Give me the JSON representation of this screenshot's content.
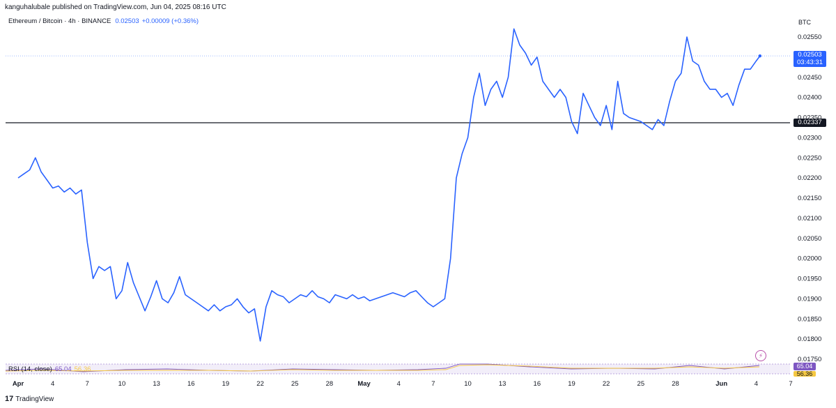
{
  "header": {
    "publisher": "kanguhalubale published on TradingView.com, Jun 04, 2025 08:16 UTC",
    "symbol": "Ethereum / Bitcoin · 4h · BINANCE",
    "last_value": "0.02503",
    "change": "+0.00009 (+0.36%)",
    "currency": "BTC"
  },
  "price_tag": {
    "price": "0.02503",
    "countdown": "03:43:31"
  },
  "horizontal_line": {
    "label": "0.02337"
  },
  "rsi": {
    "label": "RSI (14, close)",
    "value1": "65.04",
    "value2": "56.36"
  },
  "brand": {
    "logo": "17",
    "name": "TradingView"
  },
  "icons": {
    "bolt": "lightning-icon"
  },
  "colors": {
    "line": "#2962ff",
    "hline": "#131722",
    "rsi": "#7e57c2",
    "rsi_ma": "#f5c842"
  },
  "chart_data": {
    "type": "line",
    "title": "Ethereum / Bitcoin · 4h · BINANCE",
    "ylim": [
      0.0172,
      0.0259
    ],
    "xlim": [
      "2025-04-01",
      "2025-06-07"
    ],
    "y_ticks": [
      "0.02550",
      "0.02500",
      "0.02450",
      "0.02400",
      "0.02350",
      "0.02300",
      "0.02250",
      "0.02200",
      "0.02150",
      "0.02100",
      "0.02050",
      "0.02000",
      "0.01950",
      "0.01900",
      "0.01850",
      "0.01800",
      "0.01750"
    ],
    "x_ticks": [
      {
        "label": "Apr",
        "date": "2025-04-01",
        "bold": true
      },
      {
        "label": "4",
        "date": "2025-04-04"
      },
      {
        "label": "7",
        "date": "2025-04-07"
      },
      {
        "label": "10",
        "date": "2025-04-10"
      },
      {
        "label": "13",
        "date": "2025-04-13"
      },
      {
        "label": "16",
        "date": "2025-04-16"
      },
      {
        "label": "19",
        "date": "2025-04-19"
      },
      {
        "label": "22",
        "date": "2025-04-22"
      },
      {
        "label": "25",
        "date": "2025-04-25"
      },
      {
        "label": "28",
        "date": "2025-04-28"
      },
      {
        "label": "May",
        "date": "2025-05-01",
        "bold": true
      },
      {
        "label": "4",
        "date": "2025-05-04"
      },
      {
        "label": "7",
        "date": "2025-05-07"
      },
      {
        "label": "10",
        "date": "2025-05-10"
      },
      {
        "label": "13",
        "date": "2025-05-13"
      },
      {
        "label": "16",
        "date": "2025-05-16"
      },
      {
        "label": "19",
        "date": "2025-05-19"
      },
      {
        "label": "22",
        "date": "2025-05-22"
      },
      {
        "label": "25",
        "date": "2025-05-25"
      },
      {
        "label": "28",
        "date": "2025-05-28"
      },
      {
        "label": "Jun",
        "date": "2025-06-01",
        "bold": true
      },
      {
        "label": "4",
        "date": "2025-06-04"
      },
      {
        "label": "7",
        "date": "2025-06-07"
      }
    ],
    "horizontal_level": 0.02337,
    "last_price": 0.02503,
    "series": [
      {
        "points": [
          [
            "2025-04-01T00",
            0.022
          ],
          [
            "2025-04-01T12",
            0.0221
          ],
          [
            "2025-04-02T00",
            0.0222
          ],
          [
            "2025-04-02T12",
            0.0225
          ],
          [
            "2025-04-03T00",
            0.02215
          ],
          [
            "2025-04-03T12",
            0.02195
          ],
          [
            "2025-04-04T00",
            0.02175
          ],
          [
            "2025-04-04T12",
            0.0218
          ],
          [
            "2025-04-05T00",
            0.02165
          ],
          [
            "2025-04-05T12",
            0.02175
          ],
          [
            "2025-04-06T00",
            0.0216
          ],
          [
            "2025-04-06T12",
            0.0217
          ],
          [
            "2025-04-07T00",
            0.0204
          ],
          [
            "2025-04-07T12",
            0.0195
          ],
          [
            "2025-04-08T00",
            0.0198
          ],
          [
            "2025-04-08T12",
            0.0197
          ],
          [
            "2025-04-09T00",
            0.0198
          ],
          [
            "2025-04-09T12",
            0.019
          ],
          [
            "2025-04-10T00",
            0.0192
          ],
          [
            "2025-04-10T12",
            0.0199
          ],
          [
            "2025-04-11T00",
            0.0194
          ],
          [
            "2025-04-11T12",
            0.01905
          ],
          [
            "2025-04-12T00",
            0.0187
          ],
          [
            "2025-04-12T12",
            0.01905
          ],
          [
            "2025-04-13T00",
            0.01945
          ],
          [
            "2025-04-13T12",
            0.019
          ],
          [
            "2025-04-14T00",
            0.0189
          ],
          [
            "2025-04-14T12",
            0.01915
          ],
          [
            "2025-04-15T00",
            0.01955
          ],
          [
            "2025-04-15T12",
            0.0191
          ],
          [
            "2025-04-16T00",
            0.019
          ],
          [
            "2025-04-16T12",
            0.0189
          ],
          [
            "2025-04-17T00",
            0.0188
          ],
          [
            "2025-04-17T12",
            0.0187
          ],
          [
            "2025-04-18T00",
            0.01885
          ],
          [
            "2025-04-18T12",
            0.0187
          ],
          [
            "2025-04-19T00",
            0.0188
          ],
          [
            "2025-04-19T12",
            0.01885
          ],
          [
            "2025-04-20T00",
            0.019
          ],
          [
            "2025-04-20T12",
            0.0188
          ],
          [
            "2025-04-21T00",
            0.01865
          ],
          [
            "2025-04-21T12",
            0.01875
          ],
          [
            "2025-04-22T00",
            0.01795
          ],
          [
            "2025-04-22T12",
            0.0188
          ],
          [
            "2025-04-23T00",
            0.0192
          ],
          [
            "2025-04-23T12",
            0.0191
          ],
          [
            "2025-04-24T00",
            0.01905
          ],
          [
            "2025-04-24T12",
            0.0189
          ],
          [
            "2025-04-25T00",
            0.019
          ],
          [
            "2025-04-25T12",
            0.0191
          ],
          [
            "2025-04-26T00",
            0.01905
          ],
          [
            "2025-04-26T12",
            0.0192
          ],
          [
            "2025-04-27T00",
            0.01905
          ],
          [
            "2025-04-27T12",
            0.019
          ],
          [
            "2025-04-28T00",
            0.0189
          ],
          [
            "2025-04-28T12",
            0.0191
          ],
          [
            "2025-04-29T00",
            0.01905
          ],
          [
            "2025-04-29T12",
            0.019
          ],
          [
            "2025-04-30T00",
            0.0191
          ],
          [
            "2025-04-30T12",
            0.019
          ],
          [
            "2025-05-01T00",
            0.01905
          ],
          [
            "2025-05-01T12",
            0.01895
          ],
          [
            "2025-05-02T00",
            0.019
          ],
          [
            "2025-05-02T12",
            0.01905
          ],
          [
            "2025-05-03T00",
            0.0191
          ],
          [
            "2025-05-03T12",
            0.01915
          ],
          [
            "2025-05-04T00",
            0.0191
          ],
          [
            "2025-05-04T12",
            0.01905
          ],
          [
            "2025-05-05T00",
            0.01915
          ],
          [
            "2025-05-05T12",
            0.0192
          ],
          [
            "2025-05-06T00",
            0.01905
          ],
          [
            "2025-05-06T12",
            0.0189
          ],
          [
            "2025-05-07T00",
            0.0188
          ],
          [
            "2025-05-07T12",
            0.0189
          ],
          [
            "2025-05-08T00",
            0.019
          ],
          [
            "2025-05-08T12",
            0.02
          ],
          [
            "2025-05-09T00",
            0.022
          ],
          [
            "2025-05-09T12",
            0.0226
          ],
          [
            "2025-05-10T00",
            0.023
          ],
          [
            "2025-05-10T12",
            0.024
          ],
          [
            "2025-05-11T00",
            0.0246
          ],
          [
            "2025-05-11T12",
            0.0238
          ],
          [
            "2025-05-12T00",
            0.0242
          ],
          [
            "2025-05-12T12",
            0.0244
          ],
          [
            "2025-05-13T00",
            0.024
          ],
          [
            "2025-05-13T12",
            0.0245
          ],
          [
            "2025-05-14T00",
            0.0257
          ],
          [
            "2025-05-14T12",
            0.0253
          ],
          [
            "2025-05-15T00",
            0.0251
          ],
          [
            "2025-05-15T12",
            0.0248
          ],
          [
            "2025-05-16T00",
            0.025
          ],
          [
            "2025-05-16T12",
            0.0244
          ],
          [
            "2025-05-17T00",
            0.0242
          ],
          [
            "2025-05-17T12",
            0.024
          ],
          [
            "2025-05-18T00",
            0.0242
          ],
          [
            "2025-05-18T12",
            0.024
          ],
          [
            "2025-05-19T00",
            0.0234
          ],
          [
            "2025-05-19T12",
            0.0231
          ],
          [
            "2025-05-20T00",
            0.0241
          ],
          [
            "2025-05-20T12",
            0.0238
          ],
          [
            "2025-05-21T00",
            0.0235
          ],
          [
            "2025-05-21T12",
            0.0233
          ],
          [
            "2025-05-22T00",
            0.0238
          ],
          [
            "2025-05-22T12",
            0.0232
          ],
          [
            "2025-05-23T00",
            0.0244
          ],
          [
            "2025-05-23T12",
            0.0236
          ],
          [
            "2025-05-24T00",
            0.0235
          ],
          [
            "2025-05-24T12",
            0.02345
          ],
          [
            "2025-05-25T00",
            0.0234
          ],
          [
            "2025-05-25T12",
            0.0233
          ],
          [
            "2025-05-26T00",
            0.0232
          ],
          [
            "2025-05-26T12",
            0.02345
          ],
          [
            "2025-05-27T00",
            0.0233
          ],
          [
            "2025-05-27T12",
            0.0239
          ],
          [
            "2025-05-28T00",
            0.0244
          ],
          [
            "2025-05-28T12",
            0.0246
          ],
          [
            "2025-05-29T00",
            0.0255
          ],
          [
            "2025-05-29T12",
            0.0249
          ],
          [
            "2025-05-30T00",
            0.0248
          ],
          [
            "2025-05-30T12",
            0.0244
          ],
          [
            "2025-05-31T00",
            0.0242
          ],
          [
            "2025-05-31T12",
            0.0242
          ],
          [
            "2025-06-01T00",
            0.024
          ],
          [
            "2025-06-01T12",
            0.0241
          ],
          [
            "2025-06-02T00",
            0.0238
          ],
          [
            "2025-06-02T12",
            0.0243
          ],
          [
            "2025-06-03T00",
            0.0247
          ],
          [
            "2025-06-03T12",
            0.0247
          ],
          [
            "2025-06-04T00",
            0.0249
          ],
          [
            "2025-06-04T08",
            0.02503
          ]
        ]
      }
    ],
    "grid": false,
    "legend": "top-left"
  }
}
